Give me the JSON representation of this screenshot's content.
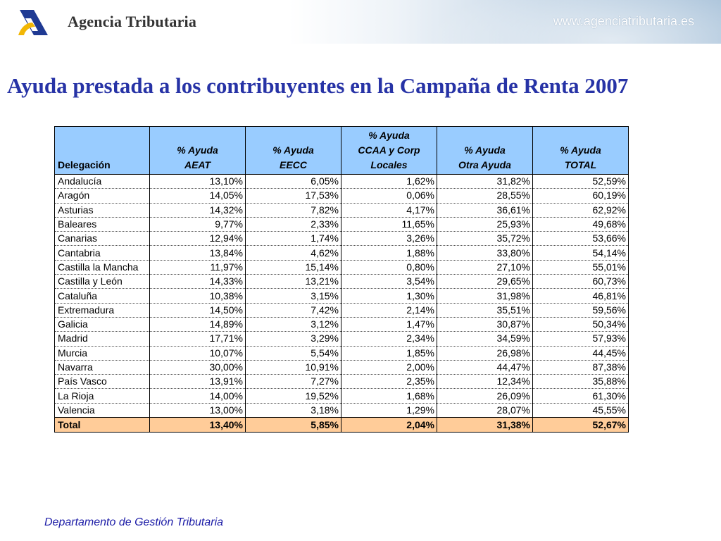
{
  "header": {
    "brand": "Agencia Tributaria",
    "url": "www.agenciatributaria.es",
    "logo_icon": "agencia-tributaria-logo"
  },
  "title": "Ayuda prestada a los contribuyentes en la Campaña de Renta 2007",
  "table": {
    "headers": [
      [
        "Delegación"
      ],
      [
        "% Ayuda",
        "AEAT"
      ],
      [
        "% Ayuda",
        "EECC"
      ],
      [
        "% Ayuda",
        "CCAA y Corp",
        "Locales"
      ],
      [
        "% Ayuda",
        "Otra Ayuda"
      ],
      [
        "% Ayuda",
        "TOTAL"
      ]
    ],
    "rows": [
      [
        "Andalucía",
        "13,10%",
        "6,05%",
        "1,62%",
        "31,82%",
        "52,59%"
      ],
      [
        "Aragón",
        "14,05%",
        "17,53%",
        "0,06%",
        "28,55%",
        "60,19%"
      ],
      [
        "Asturias",
        "14,32%",
        "7,82%",
        "4,17%",
        "36,61%",
        "62,92%"
      ],
      [
        "Baleares",
        "9,77%",
        "2,33%",
        "11,65%",
        "25,93%",
        "49,68%"
      ],
      [
        "Canarias",
        "12,94%",
        "1,74%",
        "3,26%",
        "35,72%",
        "53,66%"
      ],
      [
        "Cantabria",
        "13,84%",
        "4,62%",
        "1,88%",
        "33,80%",
        "54,14%"
      ],
      [
        "Castilla la Mancha",
        "11,97%",
        "15,14%",
        "0,80%",
        "27,10%",
        "55,01%"
      ],
      [
        "Castilla y León",
        "14,33%",
        "13,21%",
        "3,54%",
        "29,65%",
        "60,73%"
      ],
      [
        "Cataluña",
        "10,38%",
        "3,15%",
        "1,30%",
        "31,98%",
        "46,81%"
      ],
      [
        "Extremadura",
        "14,50%",
        "7,42%",
        "2,14%",
        "35,51%",
        "59,56%"
      ],
      [
        "Galicia",
        "14,89%",
        "3,12%",
        "1,47%",
        "30,87%",
        "50,34%"
      ],
      [
        "Madrid",
        "17,71%",
        "3,29%",
        "2,34%",
        "34,59%",
        "57,93%"
      ],
      [
        "Murcia",
        "10,07%",
        "5,54%",
        "1,85%",
        "26,98%",
        "44,45%"
      ],
      [
        "Navarra",
        "30,00%",
        "10,91%",
        "2,00%",
        "44,47%",
        "87,38%"
      ],
      [
        "País Vasco",
        "13,91%",
        "7,27%",
        "2,35%",
        "12,34%",
        "35,88%"
      ],
      [
        "La Rioja",
        "14,00%",
        "19,52%",
        "1,68%",
        "26,09%",
        "61,30%"
      ],
      [
        "Valencia",
        "13,00%",
        "3,18%",
        "1,29%",
        "28,07%",
        "45,55%"
      ]
    ],
    "total": [
      "Total",
      "13,40%",
      "5,85%",
      "2,04%",
      "31,38%",
      "52,67%"
    ]
  },
  "footer": "Departamento de Gestión Tributaria",
  "colors": {
    "title": "#2733a6",
    "header_fill": "#99ccff",
    "total_fill": "#ffcc99",
    "footer": "#1a1aa6"
  }
}
